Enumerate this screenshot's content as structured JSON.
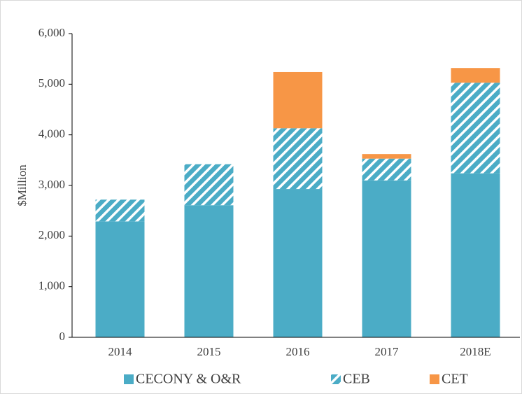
{
  "chart_data": {
    "type": "stacked_bar",
    "y_label": "$Million",
    "categories": [
      "2014",
      "2015",
      "2016",
      "2017",
      "2018E"
    ],
    "series": [
      {
        "name": "CECONY & O&R",
        "color": "#4bacc6",
        "values": [
          2290,
          2610,
          2930,
          3100,
          3240
        ]
      },
      {
        "name": "CEB",
        "color": "#4bacc6",
        "hatch": true,
        "values": [
          430,
          810,
          1200,
          430,
          1790
        ]
      },
      {
        "name": "CET",
        "color": "#f79646",
        "values": [
          0,
          0,
          1110,
          90,
          290
        ]
      }
    ],
    "ylim": [
      0,
      6000
    ],
    "yticks": [
      0,
      {
        "value": 1000,
        "label": "1,000"
      },
      {
        "value": 2000,
        "label": "2,000"
      },
      {
        "value": 3000,
        "label": "3,000"
      },
      {
        "value": 4000,
        "label": "4,000"
      },
      {
        "value": 5000,
        "label": "5,000"
      },
      {
        "value": 6000,
        "label": "6,000"
      }
    ],
    "legend": "bottom"
  }
}
